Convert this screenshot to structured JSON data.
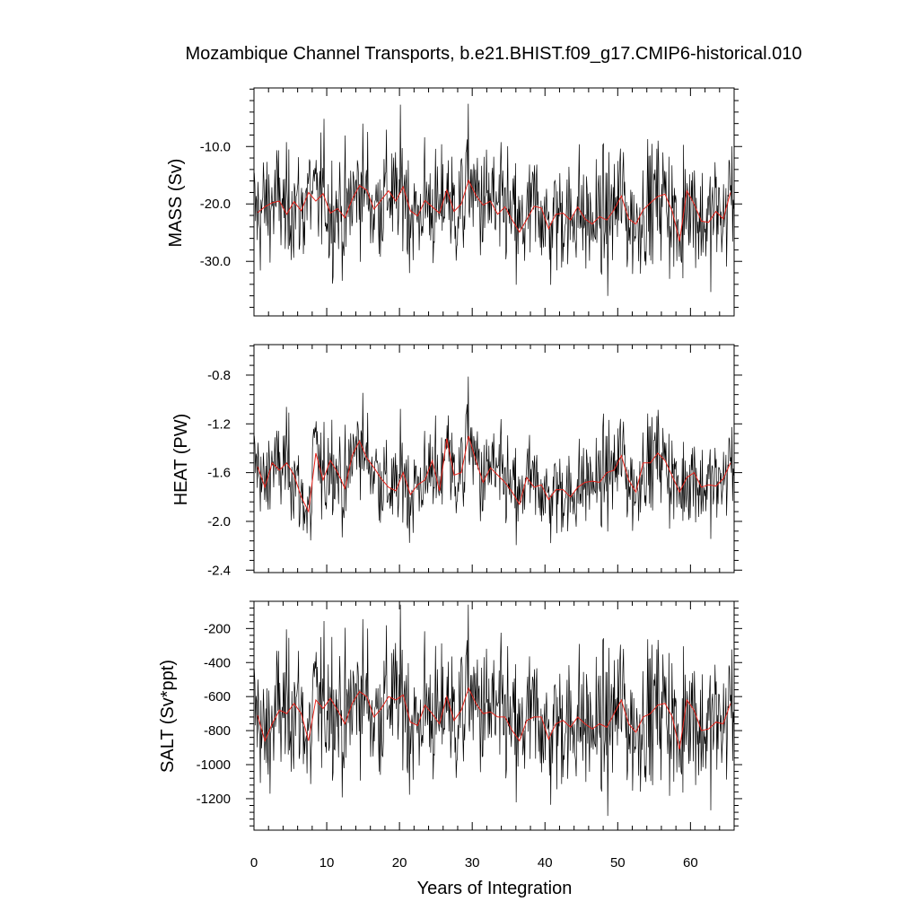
{
  "chart_data": {
    "type": "line",
    "title": "Mozambique Channel Transports, b.e21.BHIST.f09_g17.CMIP6-historical.010",
    "xlabel": "Years of Integration",
    "xlim": [
      0,
      66
    ],
    "xticks": [
      0,
      10,
      20,
      30,
      40,
      50,
      60
    ],
    "series_colors": {
      "monthly": "#000000",
      "annual": "#e8221a"
    },
    "panels": [
      {
        "ylabel": "MASS (Sv)",
        "ylim": [
          -39.5,
          0.2
        ],
        "yticks": [
          -10.0,
          -20.0,
          -30.0
        ],
        "ytick_labels": [
          "-10.0",
          "-20.0",
          "-30.0"
        ],
        "annual_mean": [
          -21.5,
          -20.5,
          -19.8,
          -19.5,
          -21.8,
          -19.6,
          -21.2,
          -18.0,
          -19.5,
          -18.2,
          -21.6,
          -20.8,
          -22.4,
          -19.2,
          -16.8,
          -17.6,
          -20.9,
          -19.3,
          -17.7,
          -19.5,
          -17.0,
          -21.2,
          -22.1,
          -19.4,
          -20.5,
          -21.6,
          -17.6,
          -21.3,
          -20.0,
          -15.9,
          -18.5,
          -20.2,
          -19.5,
          -21.8,
          -20.5,
          -22.8,
          -24.9,
          -22.7,
          -20.4,
          -20.7,
          -24.3,
          -21.8,
          -21.6,
          -22.8,
          -20.5,
          -22.6,
          -23.5,
          -22.2,
          -22.8,
          -21.0,
          -18.6,
          -22.6,
          -23.5,
          -21.0,
          -19.8,
          -18.7,
          -18.3,
          -21.3,
          -26.5,
          -17.7,
          -20.0,
          -23.0,
          -23.2,
          -21.3,
          -22.6,
          -18.0
        ]
      },
      {
        "ylabel": "HEAT (PW)",
        "ylim": [
          -2.42,
          -0.55
        ],
        "yticks": [
          -0.8,
          -1.2,
          -1.6,
          -2.0,
          -2.4
        ],
        "ytick_labels": [
          "-0.8",
          "-1.2",
          "-1.6",
          "-2.0",
          "-2.4"
        ],
        "annual_mean": [
          -1.55,
          -1.72,
          -1.52,
          -1.58,
          -1.52,
          -1.62,
          -1.8,
          -1.92,
          -1.44,
          -1.66,
          -1.5,
          -1.6,
          -1.73,
          -1.46,
          -1.34,
          -1.48,
          -1.56,
          -1.65,
          -1.72,
          -1.75,
          -1.6,
          -1.78,
          -1.7,
          -1.66,
          -1.5,
          -1.75,
          -1.32,
          -1.62,
          -1.6,
          -1.3,
          -1.5,
          -1.68,
          -1.56,
          -1.62,
          -1.68,
          -1.76,
          -1.86,
          -1.64,
          -1.72,
          -1.7,
          -1.82,
          -1.74,
          -1.74,
          -1.8,
          -1.72,
          -1.68,
          -1.67,
          -1.68,
          -1.6,
          -1.58,
          -1.46,
          -1.66,
          -1.76,
          -1.52,
          -1.52,
          -1.44,
          -1.5,
          -1.63,
          -1.76,
          -1.64,
          -1.6,
          -1.72,
          -1.7,
          -1.71,
          -1.65,
          -1.52
        ]
      },
      {
        "ylabel": "SALT (Sv*ppt)",
        "ylim": [
          -1385,
          -40
        ],
        "yticks": [
          -200,
          -400,
          -600,
          -800,
          -1000,
          -1200
        ],
        "ytick_labels": [
          "-200",
          "-400",
          "-600",
          "-800",
          "-1000",
          "-1200"
        ],
        "annual_mean": [
          -710,
          -860,
          -760,
          -680,
          -700,
          -640,
          -700,
          -860,
          -620,
          -670,
          -610,
          -680,
          -760,
          -640,
          -570,
          -600,
          -720,
          -670,
          -600,
          -620,
          -590,
          -750,
          -770,
          -650,
          -700,
          -760,
          -600,
          -740,
          -680,
          -550,
          -640,
          -700,
          -690,
          -720,
          -720,
          -800,
          -860,
          -740,
          -720,
          -720,
          -850,
          -760,
          -740,
          -780,
          -720,
          -760,
          -790,
          -760,
          -780,
          -700,
          -620,
          -760,
          -810,
          -720,
          -700,
          -650,
          -640,
          -720,
          -910,
          -620,
          -680,
          -800,
          -790,
          -750,
          -760,
          -640
        ]
      }
    ]
  }
}
